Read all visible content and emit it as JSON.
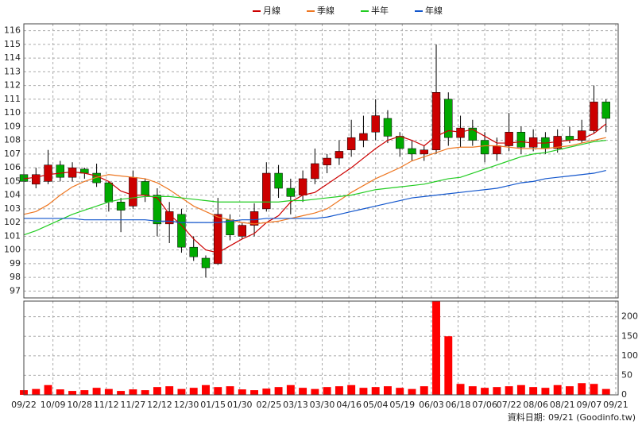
{
  "chart_data": [
    {
      "type": "candlestick",
      "legend": "top",
      "xlim": [
        0,
        245
      ],
      "xticks": [
        {
          "value": 0,
          "label": "09/22"
        },
        {
          "value": 12,
          "label": "10/09"
        },
        {
          "value": 23,
          "label": "10/28"
        },
        {
          "value": 34,
          "label": "11/12"
        },
        {
          "value": 45,
          "label": "11/27"
        },
        {
          "value": 56,
          "label": "12/12"
        },
        {
          "value": 67,
          "label": "12/30"
        },
        {
          "value": 78,
          "label": "01/15"
        },
        {
          "value": 89,
          "label": "01/30"
        },
        {
          "value": 101,
          "label": "02/25"
        },
        {
          "value": 112,
          "label": "03/13"
        },
        {
          "value": 123,
          "label": "03/30"
        },
        {
          "value": 134,
          "label": "04/16"
        },
        {
          "value": 145,
          "label": "05/04"
        },
        {
          "value": 156,
          "label": "05/19"
        },
        {
          "value": 168,
          "label": "06/03"
        },
        {
          "value": 179,
          "label": "06/18"
        },
        {
          "value": 190,
          "label": "07/06"
        },
        {
          "value": 200,
          "label": "07/22"
        },
        {
          "value": 211,
          "label": "08/06"
        },
        {
          "value": 222,
          "label": "08/21"
        },
        {
          "value": 233,
          "label": "09/07"
        },
        {
          "value": 244,
          "label": "09/21"
        }
      ],
      "ylim": [
        96.5,
        116.5
      ],
      "yticks": [
        97,
        98,
        99,
        100,
        101,
        102,
        103,
        104,
        105,
        106,
        107,
        108,
        109,
        110,
        111,
        112,
        113,
        114,
        115,
        116
      ],
      "grid": true,
      "up_color": "#cc0000",
      "down_color": "#00aa00",
      "x": [
        0,
        5,
        10,
        15,
        20,
        25,
        30,
        35,
        40,
        45,
        50,
        55,
        60,
        65,
        70,
        75,
        80,
        85,
        90,
        95,
        100,
        105,
        110,
        115,
        120,
        125,
        130,
        135,
        140,
        145,
        150,
        155,
        160,
        165,
        170,
        175,
        180,
        185,
        190,
        195,
        200,
        205,
        210,
        215,
        220,
        225,
        230,
        235,
        240
      ],
      "open": [
        105.5,
        104.8,
        105,
        106.2,
        105.3,
        105.9,
        105.6,
        104.9,
        103.5,
        103.2,
        105,
        104,
        101.9,
        102.6,
        100.2,
        99.4,
        99,
        102.2,
        101,
        101.8,
        103,
        105.6,
        104.5,
        104,
        105.2,
        106.2,
        106.7,
        107.3,
        108,
        108.6,
        109.6,
        108.3,
        107.4,
        107,
        107.3,
        111,
        108.2,
        108.9,
        108,
        107,
        107.6,
        108.6,
        107.5,
        108.2,
        107.4,
        108.3,
        108,
        108.7,
        110.8
      ],
      "high": [
        106,
        106,
        107.3,
        106.5,
        106.4,
        106,
        106.3,
        105,
        103.8,
        105.8,
        105.2,
        104.5,
        103.5,
        103,
        101,
        99.6,
        103.8,
        102.6,
        102,
        103.4,
        106.4,
        106.2,
        105.2,
        105.8,
        107.4,
        107,
        108,
        109.5,
        109.8,
        111,
        110.2,
        108.6,
        108,
        107.6,
        115,
        111.5,
        109.8,
        109.5,
        108.6,
        108.2,
        110,
        109,
        108.8,
        108.6,
        108.8,
        109,
        109.5,
        112,
        111
      ],
      "low": [
        104.5,
        104.5,
        104.8,
        105,
        105,
        105.2,
        104.6,
        102.8,
        101.3,
        103,
        103.5,
        101,
        100.5,
        99.8,
        99.2,
        98,
        98.9,
        100.7,
        100.8,
        101,
        102.8,
        103.8,
        102.6,
        103.5,
        104.8,
        105.6,
        106.2,
        106.8,
        107.5,
        108,
        107.8,
        106.8,
        106.5,
        106.5,
        107,
        107.6,
        107.5,
        107.6,
        106.4,
        106.5,
        107.2,
        107,
        107.2,
        107,
        107.1,
        107.8,
        107.8,
        108.5,
        108.6
      ],
      "close": [
        105,
        105.5,
        106.2,
        105.3,
        106,
        105.6,
        104.9,
        103.5,
        102.9,
        105.3,
        104,
        101.9,
        102.8,
        100.2,
        99.5,
        98.7,
        102.6,
        101.1,
        101.8,
        102.8,
        105.6,
        104.5,
        103.9,
        105.2,
        106.3,
        106.7,
        107.2,
        108.2,
        108.5,
        109.8,
        108.3,
        107.4,
        107,
        107.3,
        111.5,
        108.2,
        108.9,
        108,
        107,
        107.6,
        108.6,
        107.5,
        108.2,
        107.4,
        108.3,
        108,
        108.7,
        110.8,
        109.6
      ],
      "series": [
        {
          "name": "月線",
          "color": "#cc0000",
          "values": [
            105.2,
            105.3,
            105.5,
            105.6,
            105.7,
            105.6,
            105.4,
            105,
            104.3,
            104,
            104,
            103.8,
            102.6,
            101.8,
            100.8,
            100,
            99.8,
            100.3,
            100.8,
            101.2,
            102,
            102.5,
            103.5,
            104,
            104.2,
            104.8,
            105.4,
            106,
            106.7,
            107.4,
            108,
            108.3,
            108,
            107.6,
            108.3,
            108.7,
            108.6,
            108.8,
            108.3,
            107.8,
            107.8,
            107.9,
            107.8,
            107.8,
            107.9,
            108,
            108.1,
            108.5,
            109.2
          ]
        },
        {
          "name": "季線",
          "color": "#ee7722",
          "values": [
            102.6,
            102.8,
            103.3,
            104,
            104.6,
            105,
            105.3,
            105.5,
            105.4,
            105.3,
            105.2,
            104.9,
            104.4,
            103.8,
            103.2,
            102.8,
            102.4,
            102.2,
            102,
            101.9,
            102,
            102.1,
            102.3,
            102.5,
            102.7,
            103,
            103.6,
            104.2,
            104.7,
            105.2,
            105.6,
            106,
            106.5,
            106.8,
            107.1,
            107.4,
            107.5,
            107.5,
            107.6,
            107.6,
            107.5,
            107.4,
            107.4,
            107.4,
            107.5,
            107.6,
            107.8,
            108,
            108.2
          ]
        },
        {
          "name": "半年",
          "color": "#22cc22",
          "values": [
            101.1,
            101.4,
            101.8,
            102.2,
            102.6,
            102.9,
            103.2,
            103.5,
            103.7,
            103.8,
            103.9,
            103.9,
            103.9,
            103.8,
            103.7,
            103.6,
            103.5,
            103.5,
            103.5,
            103.5,
            103.5,
            103.5,
            103.6,
            103.6,
            103.7,
            103.8,
            103.9,
            104,
            104.2,
            104.4,
            104.5,
            104.6,
            104.7,
            104.8,
            105,
            105.2,
            105.3,
            105.6,
            105.9,
            106.2,
            106.5,
            106.8,
            107,
            107.1,
            107.3,
            107.5,
            107.7,
            107.9,
            108
          ]
        },
        {
          "name": "年線",
          "color": "#1155cc",
          "values": [
            102.3,
            102.3,
            102.3,
            102.3,
            102.3,
            102.2,
            102.2,
            102.2,
            102.2,
            102.2,
            102.2,
            102.1,
            102.1,
            102,
            102,
            102,
            102,
            102.1,
            102.2,
            102.2,
            102.3,
            102.3,
            102.3,
            102.3,
            102.3,
            102.4,
            102.6,
            102.8,
            103,
            103.2,
            103.4,
            103.6,
            103.8,
            103.9,
            104,
            104.1,
            104.2,
            104.3,
            104.4,
            104.5,
            104.7,
            104.9,
            105,
            105.2,
            105.3,
            105.4,
            105.5,
            105.6,
            105.8
          ]
        }
      ]
    },
    {
      "type": "bar",
      "color": "#ff0000",
      "ylim": [
        0,
        240
      ],
      "yticks": [
        0,
        50,
        100,
        150,
        200
      ],
      "x": [
        0,
        5,
        10,
        15,
        20,
        25,
        30,
        35,
        40,
        45,
        50,
        55,
        60,
        65,
        70,
        75,
        80,
        85,
        90,
        95,
        100,
        105,
        110,
        115,
        120,
        125,
        130,
        135,
        140,
        145,
        150,
        155,
        160,
        165,
        170,
        175,
        180,
        185,
        190,
        195,
        200,
        205,
        210,
        215,
        220,
        225,
        230,
        235,
        240
      ],
      "values": [
        12,
        15,
        25,
        14,
        10,
        12,
        18,
        15,
        10,
        14,
        12,
        20,
        22,
        15,
        18,
        25,
        20,
        22,
        14,
        12,
        16,
        20,
        25,
        18,
        15,
        20,
        22,
        25,
        18,
        20,
        22,
        18,
        15,
        22,
        240,
        150,
        28,
        22,
        18,
        20,
        22,
        25,
        20,
        18,
        25,
        22,
        30,
        28,
        15
      ]
    }
  ],
  "footer": "資料日期: 09/21  (Goodinfo.tw)"
}
